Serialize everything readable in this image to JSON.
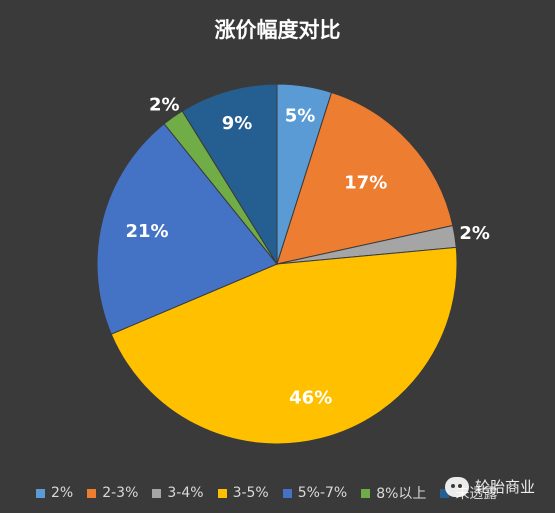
{
  "chart_data": {
    "type": "pie",
    "title": "涨价幅度对比",
    "categories": [
      "2%",
      "2-3%",
      "3-4%",
      "3-5%",
      "5%-7%",
      "8%以上",
      "未透露"
    ],
    "values": [
      5,
      17,
      2,
      46,
      21,
      2,
      9
    ],
    "data_labels": [
      "5%",
      "17%",
      "2%",
      "46%",
      "21%",
      "2%",
      "9%"
    ],
    "colors": [
      "#5b9bd5",
      "#ed7d31",
      "#a5a5a5",
      "#ffc000",
      "#4472c4",
      "#70ad47",
      "#255e91"
    ],
    "legend_position": "bottom"
  },
  "watermark": {
    "text": "轮胎商业"
  }
}
